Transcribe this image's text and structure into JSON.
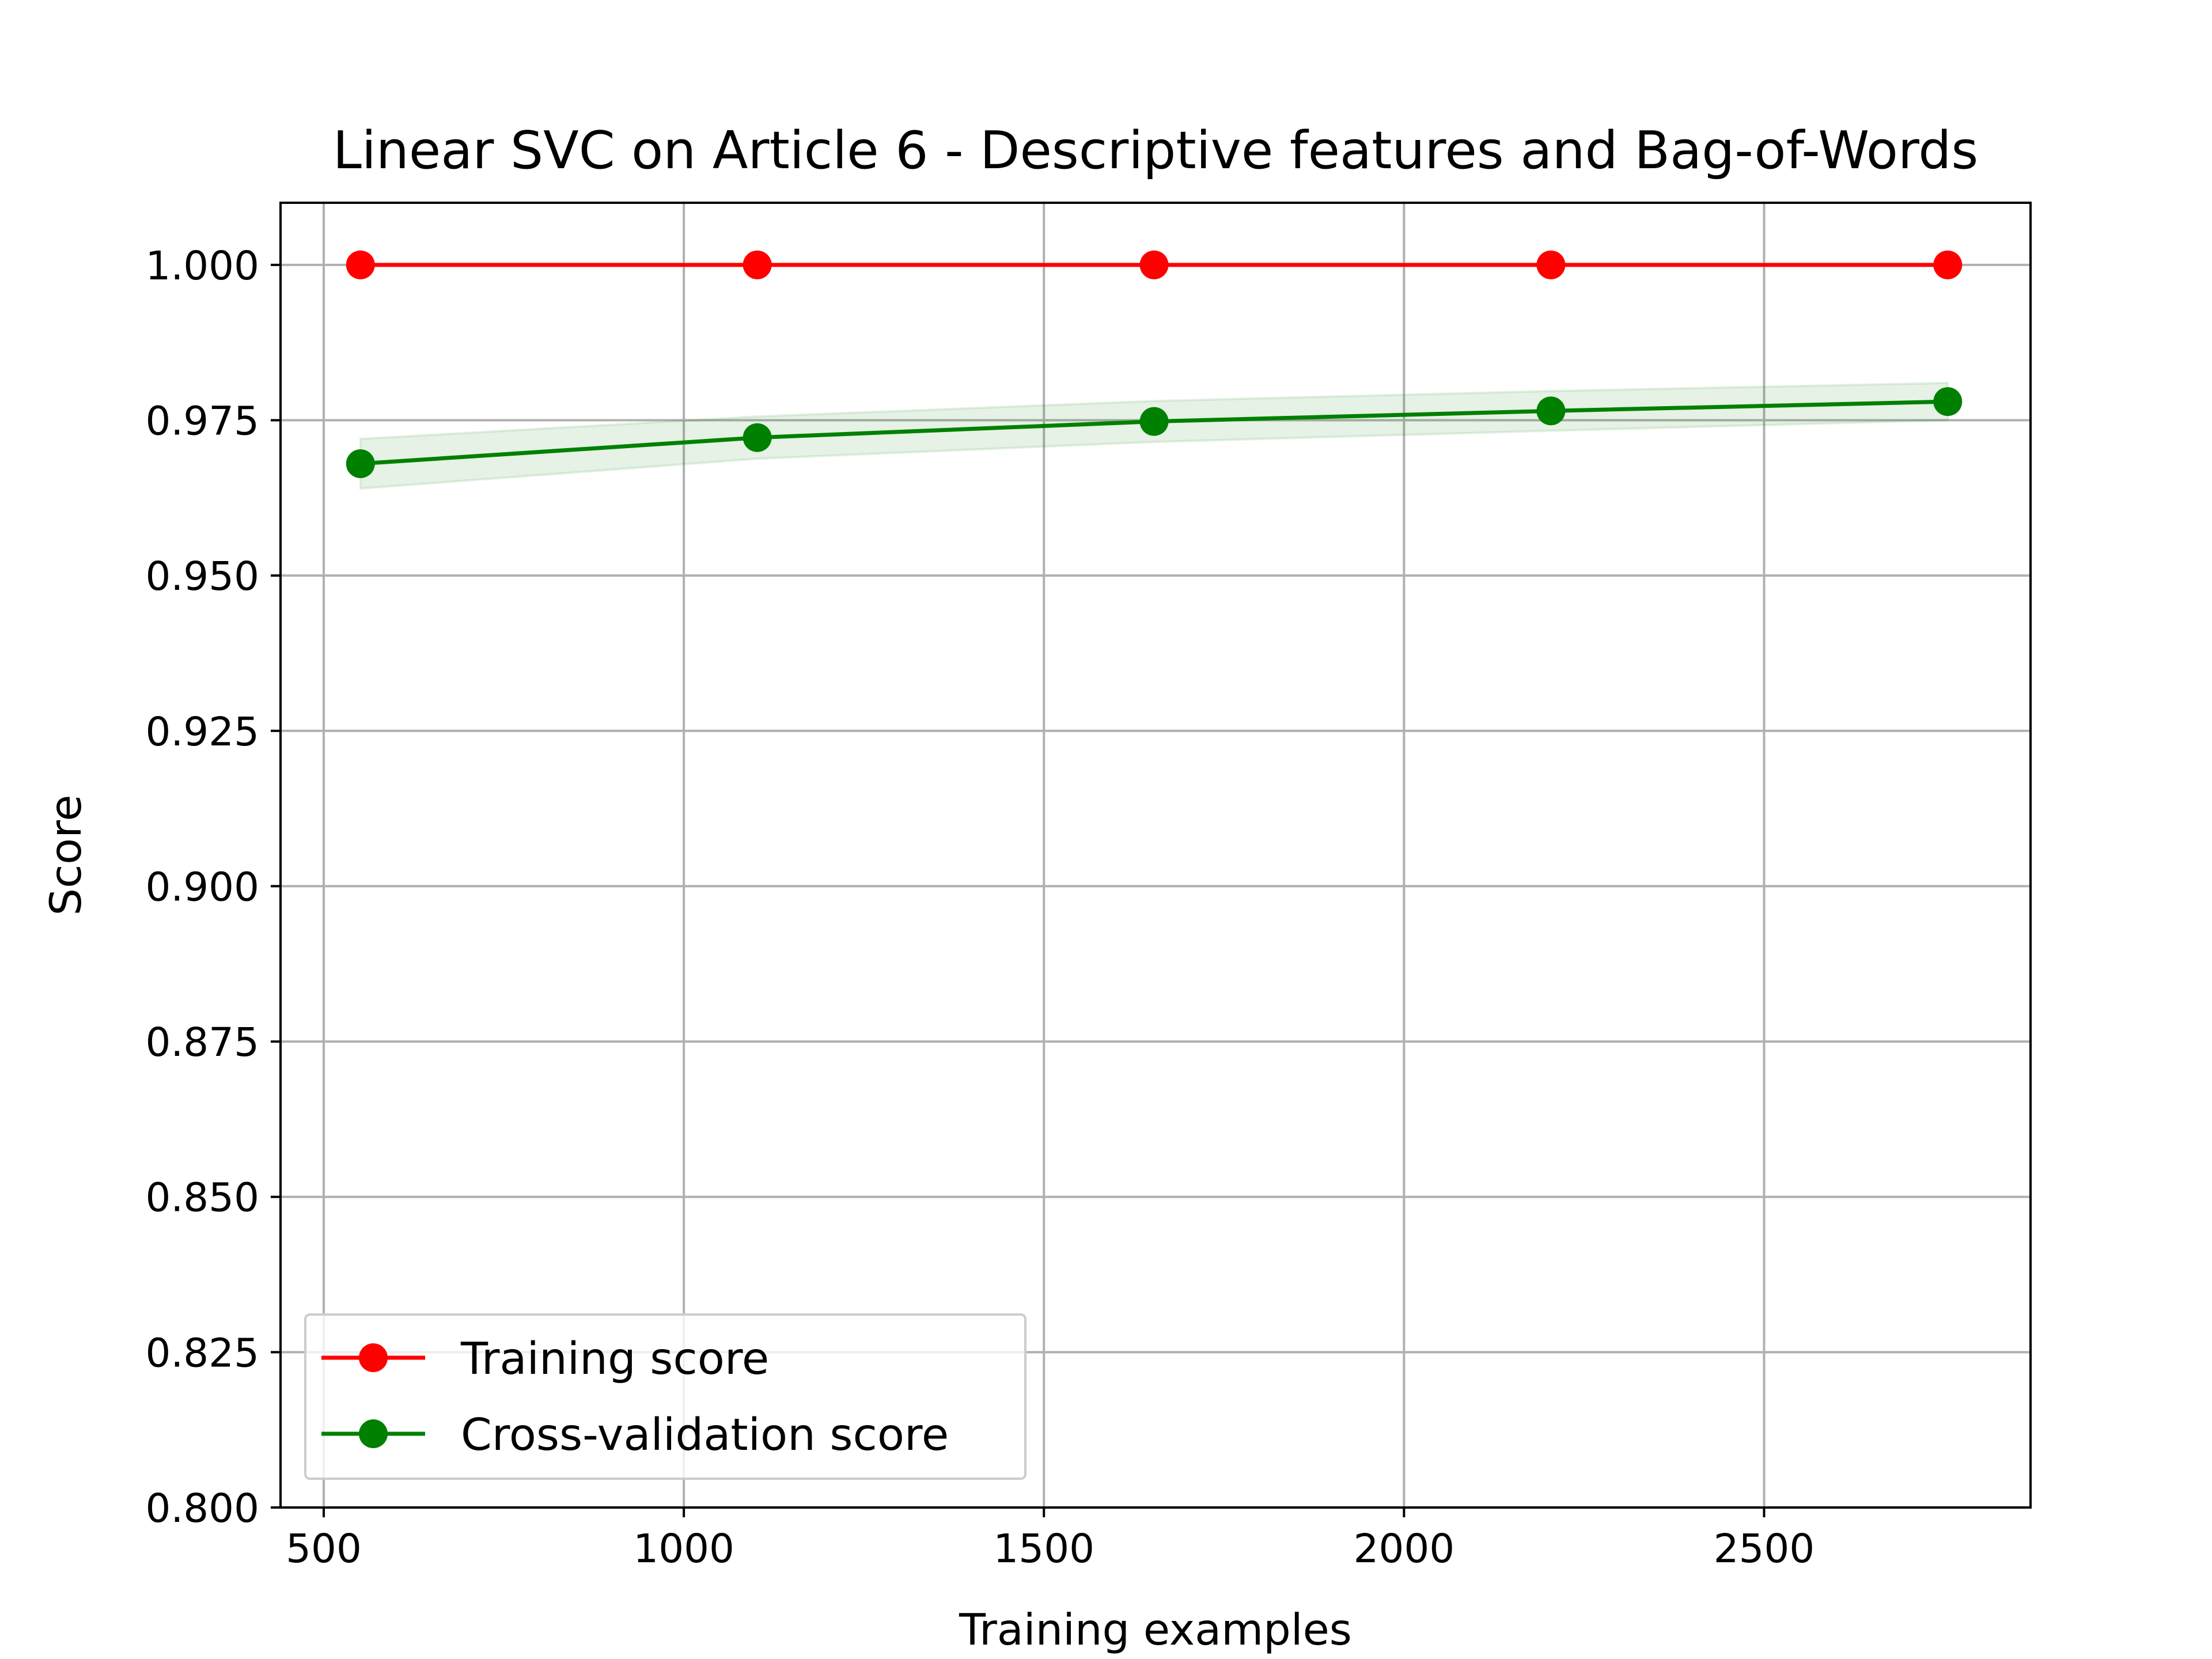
{
  "chart_data": {
    "type": "line",
    "title": "Linear SVC on Article 6 - Descriptive features and Bag-of-Words",
    "xlabel": "Training examples",
    "ylabel": "Score",
    "xlim": [
      440,
      2870
    ],
    "ylim": [
      0.8,
      1.01
    ],
    "xticks": [
      500,
      1000,
      1500,
      2000,
      2500
    ],
    "xtick_labels": [
      "500",
      "1000",
      "1500",
      "2000",
      "2500"
    ],
    "yticks": [
      0.8,
      0.825,
      0.85,
      0.875,
      0.9,
      0.925,
      0.95,
      0.975,
      1.0
    ],
    "ytick_labels": [
      "0.800",
      "0.825",
      "0.850",
      "0.875",
      "0.900",
      "0.925",
      "0.950",
      "0.975",
      "1.000"
    ],
    "grid": true,
    "legend_position": "lower-left",
    "x": [
      551,
      1102,
      1653,
      2204,
      2755
    ],
    "series": [
      {
        "name": "Training score",
        "color": "#ff0000",
        "marker": "circle",
        "values": [
          1.0,
          1.0,
          1.0,
          1.0,
          1.0
        ],
        "band": {
          "lower": [
            1.0,
            1.0,
            1.0,
            1.0,
            1.0
          ],
          "upper": [
            1.0,
            1.0,
            1.0,
            1.0,
            1.0
          ]
        }
      },
      {
        "name": "Cross-validation score",
        "color": "#008000",
        "marker": "circle",
        "values": [
          0.968,
          0.9722,
          0.9748,
          0.9765,
          0.978
        ],
        "band": {
          "lower": [
            0.964,
            0.9688,
            0.9715,
            0.9733,
            0.975
          ],
          "upper": [
            0.972,
            0.9756,
            0.9781,
            0.9797,
            0.981
          ]
        }
      }
    ]
  }
}
